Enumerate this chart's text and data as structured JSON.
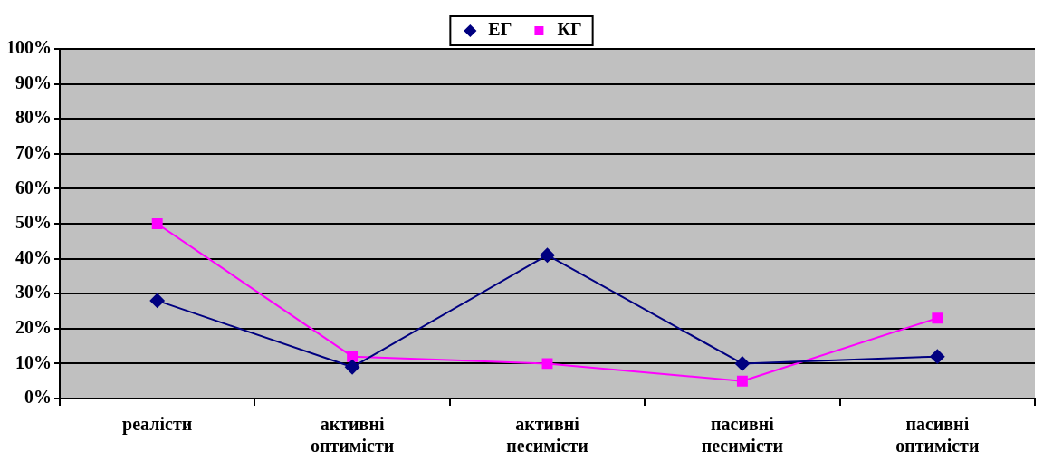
{
  "chart_data": {
    "type": "line",
    "categories": [
      "реалісти",
      "активні оптимісти",
      "активні песимісти",
      "пасивні песимісти",
      "пасивні оптимісти"
    ],
    "series": [
      {
        "name": "ЕГ",
        "color": "#000080",
        "values": [
          28,
          9,
          41,
          10,
          12
        ],
        "marker": "diamond"
      },
      {
        "name": "КГ",
        "color": "#ff00ff",
        "values": [
          50,
          12,
          10,
          5,
          23
        ],
        "marker": "square"
      }
    ],
    "ylim": [
      0,
      100
    ],
    "yticks": [
      {
        "value": 0,
        "label": "0%"
      },
      {
        "value": 10,
        "label": "10%"
      },
      {
        "value": 20,
        "label": "20%"
      },
      {
        "value": 30,
        "label": "30%"
      },
      {
        "value": 40,
        "label": "40%"
      },
      {
        "value": 50,
        "label": "50%"
      },
      {
        "value": 60,
        "label": "60%"
      },
      {
        "value": 70,
        "label": "70%"
      },
      {
        "value": 80,
        "label": "80%"
      },
      {
        "value": 90,
        "label": "90%"
      },
      {
        "value": 100,
        "label": "100%"
      }
    ],
    "grid": "y",
    "legend": "top"
  }
}
